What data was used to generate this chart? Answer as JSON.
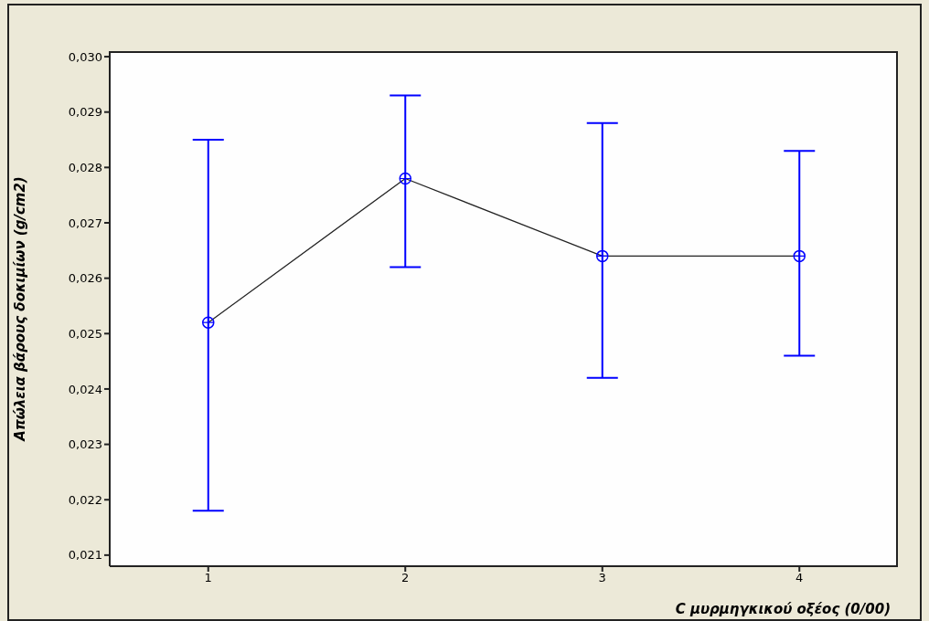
{
  "chart_data": {
    "type": "line",
    "xlabel": "C μυρμηγκικού οξέος (0/00)",
    "ylabel": "Απώλεια βάρους δοκιμίων (g/cm2)",
    "x": [
      1,
      2,
      3,
      4
    ],
    "values": [
      0.0252,
      0.0278,
      0.0264,
      0.0264
    ],
    "errors": [
      [
        0.0218,
        0.0285
      ],
      [
        0.0262,
        0.0293
      ],
      [
        0.0242,
        0.0288
      ],
      [
        0.0246,
        0.0283
      ]
    ],
    "color": "#0000ff",
    "xlim": [
      0.5,
      4.5
    ],
    "xticks": [
      1,
      2,
      3,
      4
    ],
    "ylim": [
      0.0208,
      0.0301
    ],
    "yticks": [
      {
        "value": 0.021,
        "label": "0,021"
      },
      {
        "value": 0.022,
        "label": "0,022"
      },
      {
        "value": 0.023,
        "label": "0,023"
      },
      {
        "value": 0.024,
        "label": "0,024"
      },
      {
        "value": 0.025,
        "label": "0,025"
      },
      {
        "value": 0.026,
        "label": "0,026"
      },
      {
        "value": 0.027,
        "label": "0,027"
      },
      {
        "value": 0.028,
        "label": "0,028"
      },
      {
        "value": 0.029,
        "label": "0,029"
      },
      {
        "value": 0.03,
        "label": "0,030"
      }
    ],
    "marker": "circle",
    "line_style": "solid",
    "grid": false,
    "legend": false
  }
}
